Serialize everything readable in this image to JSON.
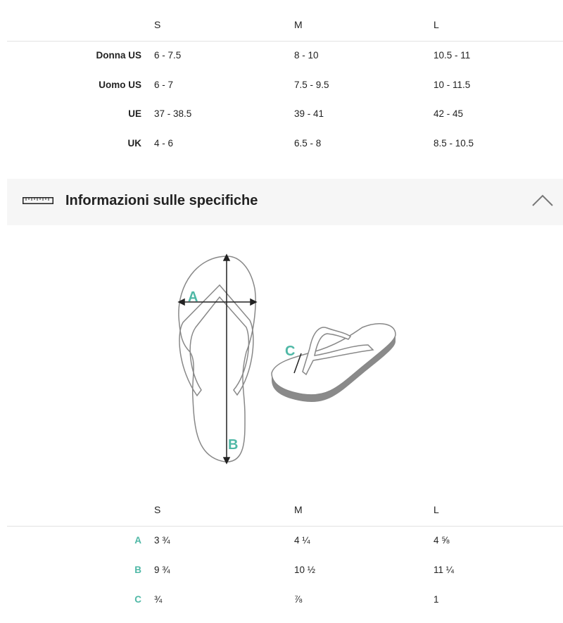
{
  "size_table": {
    "columns": [
      "S",
      "M",
      "L"
    ],
    "rows": [
      {
        "label": "Donna US",
        "values": [
          "6 - 7.5",
          "8 - 10",
          "10.5 - 11"
        ]
      },
      {
        "label": "Uomo US",
        "values": [
          "6 - 7",
          "7.5 - 9.5",
          "10 - 11.5"
        ]
      },
      {
        "label": "UE",
        "values": [
          "37 - 38.5",
          "39 - 41",
          "42 - 45"
        ]
      },
      {
        "label": "UK",
        "values": [
          "4 - 6",
          "6.5 - 8",
          "8.5 - 10.5"
        ]
      }
    ]
  },
  "spec_section": {
    "title": "Informazioni sulle specifiche",
    "icon": "ruler-icon",
    "toggle_icon": "chevron-up-icon",
    "expanded": true
  },
  "diagram": {
    "labels": {
      "a": "A",
      "b": "B",
      "c": "C"
    }
  },
  "spec_table": {
    "columns": [
      "S",
      "M",
      "L"
    ],
    "rows": [
      {
        "label": "A",
        "values": [
          "3 ¾",
          "4 ¼",
          "4 ⅝"
        ]
      },
      {
        "label": "B",
        "values": [
          "9 ¾",
          "10 ½",
          "11 ¼"
        ]
      },
      {
        "label": "C",
        "values": [
          "¾",
          "⅞",
          "1"
        ]
      }
    ]
  },
  "colors": {
    "accent": "#4fb8a6",
    "section_bg": "#f6f6f6",
    "divider": "#e2e2e2"
  }
}
